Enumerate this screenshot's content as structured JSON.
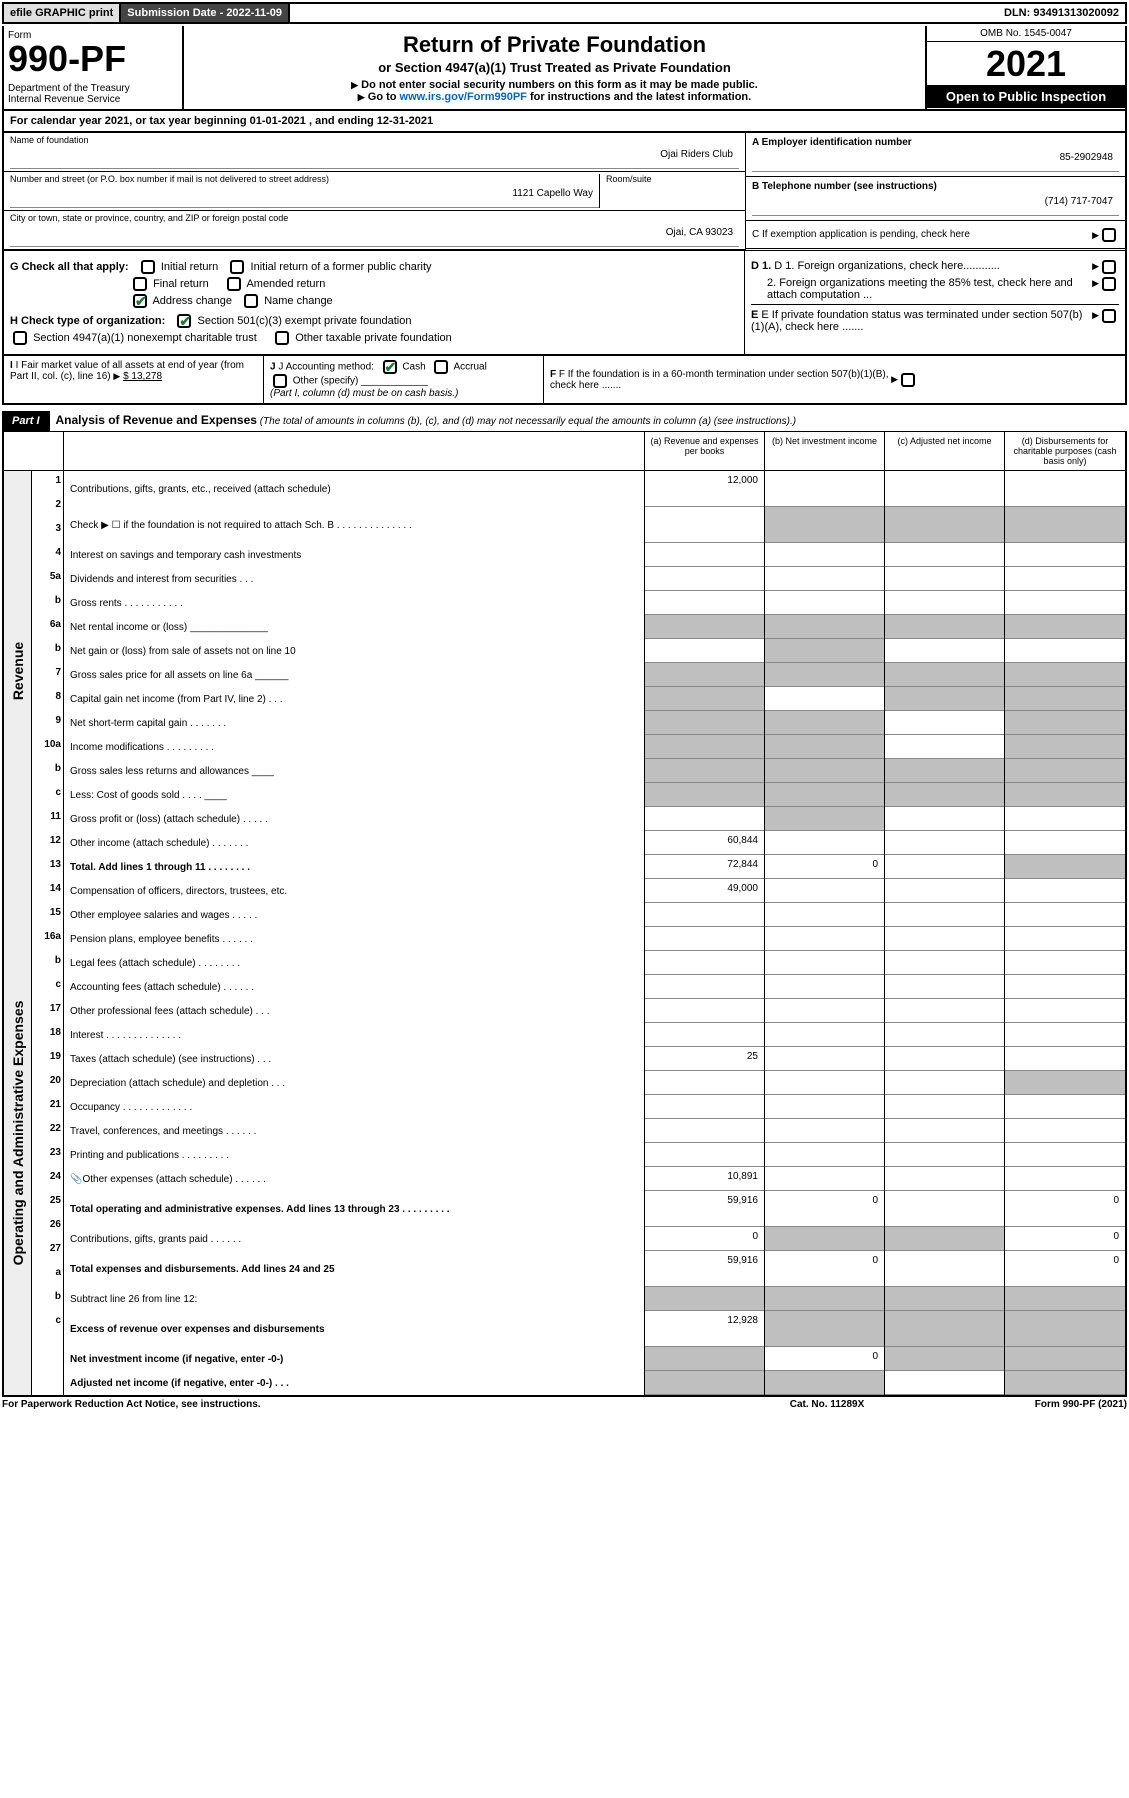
{
  "topbar": {
    "efile": "efile GRAPHIC print",
    "submission": "Submission Date - 2022-11-09",
    "dln": "DLN: 93491313020092"
  },
  "header": {
    "form_label": "Form",
    "form_no": "990-PF",
    "dept": "Department of the Treasury\nInternal Revenue Service",
    "title": "Return of Private Foundation",
    "subtitle1": "or Section 4947(a)(1) Trust Treated as Private Foundation",
    "subtitle2": "Do not enter social security numbers on this form as it may be made public.",
    "subtitle3_pre": "Go to ",
    "subtitle3_link": "www.irs.gov/Form990PF",
    "subtitle3_post": " for instructions and the latest information.",
    "omb": "OMB No. 1545-0047",
    "year": "2021",
    "open": "Open to Public Inspection"
  },
  "calyear": "For calendar year 2021, or tax year beginning 01-01-2021                    , and ending 12-31-2021",
  "foundation": {
    "name_label": "Name of foundation",
    "name": "Ojai Riders Club",
    "addr_label": "Number and street (or P.O. box number if mail is not delivered to street address)",
    "addr": "1121 Capello Way",
    "room_label": "Room/suite",
    "city_label": "City or town, state or province, country, and ZIP or foreign postal code",
    "city": "Ojai, CA  93023",
    "ein_label": "A Employer identification number",
    "ein": "85-2902948",
    "phone_label": "B Telephone number (see instructions)",
    "phone": "(714) 717-7047",
    "c_label": "C If exemption application is pending, check here"
  },
  "checks": {
    "g_label": "G Check all that apply:",
    "initial": "Initial return",
    "initial_former": "Initial return of a former public charity",
    "final": "Final return",
    "amended": "Amended return",
    "address": "Address change",
    "name": "Name change",
    "h_label": "H Check type of organization:",
    "h_501c3": "Section 501(c)(3) exempt private foundation",
    "h_4947": "Section 4947(a)(1) nonexempt charitable trust",
    "h_other": "Other taxable private foundation",
    "d1": "D 1. Foreign organizations, check here............",
    "d2": "2. Foreign organizations meeting the 85% test, check here and attach computation ...",
    "e": "E If private foundation status was terminated under section 507(b)(1)(A), check here .......",
    "f": "F If the foundation is in a 60-month termination under section 507(b)(1)(B), check here ......."
  },
  "hij": {
    "i_label": "I Fair market value of all assets at end of year (from Part II, col. (c), line 16)",
    "i_val": "$ 13,278",
    "j_label": "J Accounting method:",
    "j_cash": "Cash",
    "j_accrual": "Accrual",
    "j_other": "Other (specify)",
    "j_note": "(Part I, column (d) must be on cash basis.)"
  },
  "part1": {
    "label": "Part I",
    "title": "Analysis of Revenue and Expenses",
    "subtitle": "(The total of amounts in columns (b), (c), and (d) may not necessarily equal the amounts in column (a) (see instructions).)",
    "col_a": "(a) Revenue and expenses per books",
    "col_b": "(b) Net investment income",
    "col_c": "(c) Adjusted net income",
    "col_d": "(d) Disbursements for charitable purposes (cash basis only)"
  },
  "sides": {
    "revenue": "Revenue",
    "expenses": "Operating and Administrative Expenses"
  },
  "lines": [
    {
      "n": "1",
      "d": "Contributions, gifts, grants, etc., received (attach schedule)",
      "a": "12,000",
      "tall": true
    },
    {
      "n": "2",
      "d": "Check ▶ ☐ if the foundation is not required to attach Sch. B    .  .  .  .  .  .  .  .  .  .  .  .  .  .",
      "shadeB": true,
      "shadeC": true,
      "shadeD": true,
      "tall": true
    },
    {
      "n": "3",
      "d": "Interest on savings and temporary cash investments"
    },
    {
      "n": "4",
      "d": "Dividends and interest from securities    .  .  ."
    },
    {
      "n": "5a",
      "d": "Gross rents    .  .  .  .  .  .  .  .  .  .  ."
    },
    {
      "n": "b",
      "d": "Net rental income or (loss) ______________",
      "shadeA": true,
      "shadeB": true,
      "shadeC": true,
      "shadeD": true
    },
    {
      "n": "6a",
      "d": "Net gain or (loss) from sale of assets not on line 10",
      "shadeB": true
    },
    {
      "n": "b",
      "d": "Gross sales price for all assets on line 6a ______",
      "shadeA": true,
      "shadeB": true,
      "shadeC": true,
      "shadeD": true
    },
    {
      "n": "7",
      "d": "Capital gain net income (from Part IV, line 2)  .  .  .",
      "shadeA": true,
      "shadeC": true,
      "shadeD": true
    },
    {
      "n": "8",
      "d": "Net short-term capital gain  .  .  .  .  .  .  .",
      "shadeA": true,
      "shadeB": true,
      "shadeD": true
    },
    {
      "n": "9",
      "d": "Income modifications  .  .  .  .  .  .  .  .  .",
      "shadeA": true,
      "shadeB": true,
      "shadeD": true
    },
    {
      "n": "10a",
      "d": "Gross sales less returns and allowances  ____",
      "shadeA": true,
      "shadeB": true,
      "shadeC": true,
      "shadeD": true
    },
    {
      "n": "b",
      "d": "Less: Cost of goods sold    .  .  .  .  ____",
      "shadeA": true,
      "shadeB": true,
      "shadeC": true,
      "shadeD": true
    },
    {
      "n": "c",
      "d": "Gross profit or (loss) (attach schedule)  .  .  .  .  .",
      "shadeB": true
    },
    {
      "n": "11",
      "d": "Other income (attach schedule)  .  .  .  .  .  .  .",
      "a": "60,844"
    },
    {
      "n": "12",
      "d": "Total. Add lines 1 through 11  .  .  .  .  .  .  .  .",
      "a": "72,844",
      "b": "0",
      "bold": true,
      "shadeD": true
    },
    {
      "n": "13",
      "d": "Compensation of officers, directors, trustees, etc.",
      "a": "49,000"
    },
    {
      "n": "14",
      "d": "Other employee salaries and wages  .  .  .  .  ."
    },
    {
      "n": "15",
      "d": "Pension plans, employee benefits  .  .  .  .  .  ."
    },
    {
      "n": "16a",
      "d": "Legal fees (attach schedule)  .  .  .  .  .  .  .  ."
    },
    {
      "n": "b",
      "d": "Accounting fees (attach schedule)  .  .  .  .  .  ."
    },
    {
      "n": "c",
      "d": "Other professional fees (attach schedule)  .  .  ."
    },
    {
      "n": "17",
      "d": "Interest  .  .  .  .  .  .  .  .  .  .  .  .  .  ."
    },
    {
      "n": "18",
      "d": "Taxes (attach schedule) (see instructions)  .  .  .",
      "a": "25"
    },
    {
      "n": "19",
      "d": "Depreciation (attach schedule) and depletion  .  .  .",
      "shadeD": true
    },
    {
      "n": "20",
      "d": "Occupancy  .  .  .  .  .  .  .  .  .  .  .  .  ."
    },
    {
      "n": "21",
      "d": "Travel, conferences, and meetings  .  .  .  .  .  ."
    },
    {
      "n": "22",
      "d": "Printing and publications  .  .  .  .  .  .  .  .  ."
    },
    {
      "n": "23",
      "d": "Other expenses (attach schedule)  .  .  .  .  .  .",
      "a": "10,891",
      "attach": true
    },
    {
      "n": "24",
      "d": "Total operating and administrative expenses. Add lines 13 through 23  .  .  .  .  .  .  .  .  .",
      "a": "59,916",
      "b": "0",
      "d4": "0",
      "bold": true,
      "tall": true
    },
    {
      "n": "25",
      "d": "Contributions, gifts, grants paid  .  .  .  .  .  .",
      "a": "0",
      "d4": "0",
      "shadeB": true,
      "shadeC": true
    },
    {
      "n": "26",
      "d": "Total expenses and disbursements. Add lines 24 and 25",
      "a": "59,916",
      "b": "0",
      "d4": "0",
      "bold": true,
      "tall": true
    },
    {
      "n": "27",
      "d": "Subtract line 26 from line 12:",
      "shadeA": true,
      "shadeB": true,
      "shadeC": true,
      "shadeD": true
    },
    {
      "n": "a",
      "d": "Excess of revenue over expenses and disbursements",
      "a": "12,928",
      "bold": true,
      "shadeB": true,
      "shadeC": true,
      "shadeD": true,
      "tall": true
    },
    {
      "n": "b",
      "d": "Net investment income (if negative, enter -0-)",
      "b": "0",
      "bold": true,
      "shadeA": true,
      "shadeC": true,
      "shadeD": true
    },
    {
      "n": "c",
      "d": "Adjusted net income (if negative, enter -0-)  .  .  .",
      "bold": true,
      "shadeA": true,
      "shadeB": true,
      "shadeD": true
    }
  ],
  "footer": {
    "left": "For Paperwork Reduction Act Notice, see instructions.",
    "mid": "Cat. No. 11289X",
    "right": "Form 990-PF (2021)"
  },
  "colors": {
    "shade": "#bfbfbf",
    "link": "#0066cc",
    "check": "#1a7a3a"
  }
}
